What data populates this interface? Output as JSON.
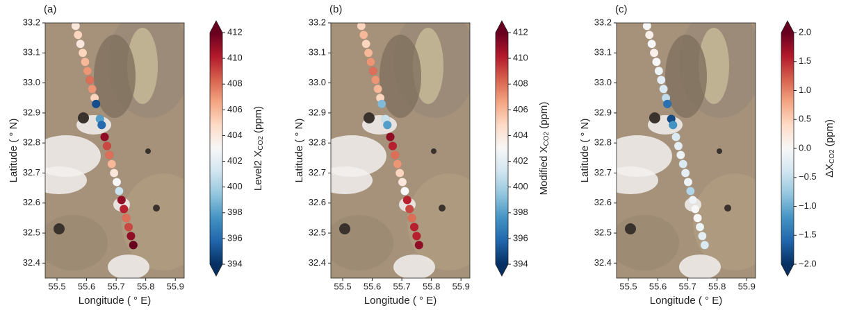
{
  "chart_data": [
    {
      "type": "scatter",
      "panel": "(a)",
      "xlabel": "Longitude ( ° E)",
      "ylabel": "Latitude ( ° N)",
      "colorbar_label": [
        "Level2 X",
        "CO2",
        " (ppm)"
      ],
      "xlim": [
        55.46,
        55.93
      ],
      "ylim": [
        32.35,
        33.2
      ],
      "xticks": [
        55.5,
        55.6,
        55.7,
        55.8,
        55.9
      ],
      "yticks": [
        {
          "value": 32.4,
          "label": "32.4"
        },
        32.5,
        32.6,
        32.7,
        32.8,
        32.9,
        {
          "value": 33,
          "label": "33.0"
        },
        33.1,
        33.2
      ],
      "clim": [
        394,
        412
      ],
      "cticks": [
        394,
        396,
        398,
        400,
        402,
        404,
        406,
        408,
        410,
        412
      ],
      "colormap": [
        "#053061",
        "#2166ac",
        "#4393c3",
        "#92c5de",
        "#d1e5f0",
        "#f7f7f7",
        "#fddbc7",
        "#f4a582",
        "#d6604d",
        "#b2182b",
        "#67001f"
      ],
      "x": [
        55.563,
        55.571,
        55.579,
        55.587,
        55.595,
        55.603,
        55.611,
        55.619,
        55.627,
        55.632,
        55.645,
        55.651,
        55.661,
        55.669,
        55.677,
        55.685,
        55.693,
        55.702,
        55.71,
        55.718,
        55.726,
        55.734,
        55.742,
        55.75,
        55.758
      ],
      "y": [
        33.19,
        33.16,
        33.13,
        33.1,
        33.07,
        33.04,
        33.01,
        32.98,
        32.95,
        32.93,
        32.88,
        32.86,
        32.82,
        32.79,
        32.76,
        32.73,
        32.7,
        32.67,
        32.64,
        32.61,
        32.58,
        32.55,
        32.52,
        32.49,
        32.46
      ],
      "values": [
        404,
        405,
        404,
        405,
        406,
        407,
        408,
        407,
        405,
        395,
        398,
        396,
        411,
        409,
        408,
        406,
        404,
        403,
        401,
        411,
        410,
        408,
        409,
        411,
        412
      ]
    },
    {
      "type": "scatter",
      "panel": "(b)",
      "xlabel": "Longitude ( ° E)",
      "ylabel": "Latitude ( ° N)",
      "colorbar_label": [
        "Modified X",
        "CO2",
        " (ppm)"
      ],
      "xlim": [
        55.46,
        55.93
      ],
      "ylim": [
        32.35,
        33.2
      ],
      "xticks": [
        55.5,
        55.6,
        55.7,
        55.8,
        55.9
      ],
      "yticks": [
        {
          "value": 32.4,
          "label": "32.4"
        },
        32.5,
        32.6,
        32.7,
        32.8,
        32.9,
        {
          "value": 33,
          "label": "33.0"
        },
        33.1,
        33.2
      ],
      "clim": [
        394,
        412
      ],
      "cticks": [
        394,
        396,
        398,
        400,
        402,
        404,
        406,
        408,
        410,
        412
      ],
      "colormap": [
        "#053061",
        "#2166ac",
        "#4393c3",
        "#92c5de",
        "#d1e5f0",
        "#f7f7f7",
        "#fddbc7",
        "#f4a582",
        "#d6604d",
        "#b2182b",
        "#67001f"
      ],
      "x": [
        55.563,
        55.571,
        55.579,
        55.587,
        55.595,
        55.603,
        55.611,
        55.619,
        55.627,
        55.632,
        55.645,
        55.651,
        55.661,
        55.669,
        55.677,
        55.685,
        55.693,
        55.702,
        55.71,
        55.718,
        55.726,
        55.734,
        55.742,
        55.75,
        55.758
      ],
      "y": [
        33.19,
        33.16,
        33.13,
        33.1,
        33.07,
        33.04,
        33.01,
        32.98,
        32.95,
        32.93,
        32.88,
        32.86,
        32.82,
        32.79,
        32.76,
        32.73,
        32.7,
        32.67,
        32.64,
        32.61,
        32.58,
        32.55,
        32.52,
        32.49,
        32.46
      ],
      "values": [
        405,
        406,
        405,
        406,
        407,
        408,
        407,
        406,
        405,
        399,
        401,
        398,
        411,
        410,
        408,
        407,
        405,
        404,
        403,
        410,
        409,
        408,
        410,
        410,
        411
      ]
    },
    {
      "type": "scatter",
      "panel": "(c)",
      "xlabel": "Longitude ( ° E)",
      "ylabel": "Latitude ( ° N)",
      "colorbar_label": [
        "ΔX",
        "CO2",
        " (ppm)"
      ],
      "xlim": [
        55.46,
        55.93
      ],
      "ylim": [
        32.35,
        33.2
      ],
      "xticks": [
        55.5,
        55.6,
        55.7,
        55.8,
        55.9
      ],
      "yticks": [
        {
          "value": 32.4,
          "label": "32.4"
        },
        32.5,
        32.6,
        32.7,
        32.8,
        32.9,
        {
          "value": 33,
          "label": "33.0"
        },
        33.1,
        33.2
      ],
      "clim": [
        -2,
        2
      ],
      "cticks": [
        {
          "value": -2,
          "label": "−2.0"
        },
        {
          "value": -1.5,
          "label": "−1.5"
        },
        {
          "value": -1,
          "label": "−1.0"
        },
        {
          "value": -0.5,
          "label": "−0.5"
        },
        {
          "value": 0,
          "label": "0.0"
        },
        {
          "value": 0.5,
          "label": "0.5"
        },
        {
          "value": 1,
          "label": "1.0"
        },
        {
          "value": 1.5,
          "label": "1.5"
        },
        {
          "value": 2,
          "label": "2.0"
        }
      ],
      "colormap": [
        "#053061",
        "#2166ac",
        "#4393c3",
        "#92c5de",
        "#d1e5f0",
        "#f7f7f7",
        "#fddbc7",
        "#f4a582",
        "#d6604d",
        "#b2182b",
        "#67001f"
      ],
      "x": [
        55.563,
        55.571,
        55.579,
        55.587,
        55.595,
        55.603,
        55.611,
        55.619,
        55.627,
        55.632,
        55.645,
        55.651,
        55.661,
        55.669,
        55.677,
        55.685,
        55.693,
        55.702,
        55.71,
        55.718,
        55.726,
        55.734,
        55.742,
        55.75,
        55.758
      ],
      "y": [
        33.19,
        33.16,
        33.13,
        33.1,
        33.07,
        33.04,
        33.01,
        32.98,
        32.95,
        32.93,
        32.88,
        32.86,
        32.82,
        32.79,
        32.76,
        32.73,
        32.7,
        32.67,
        32.64,
        32.61,
        32.58,
        32.55,
        32.52,
        32.49,
        32.46
      ],
      "values": [
        0,
        0.1,
        0,
        0.1,
        0,
        -0.1,
        -0.2,
        -0.3,
        -0.5,
        -1.5,
        -1.8,
        -1.2,
        -0.3,
        -0.2,
        -0.1,
        -0.3,
        -0.2,
        -0.1,
        -0.6,
        -0.1,
        0,
        0,
        -0.1,
        -0.2,
        -0.3
      ]
    }
  ]
}
